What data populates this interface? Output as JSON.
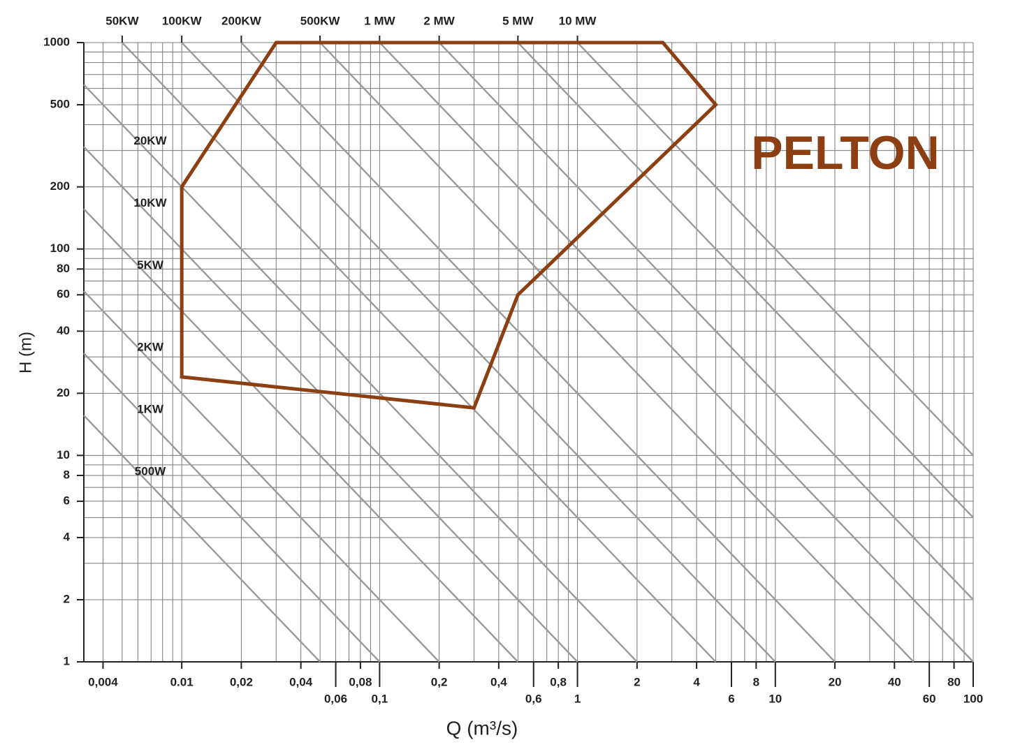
{
  "chart_data": {
    "type": "line",
    "log_x": true,
    "log_y": true,
    "grid": true,
    "xlabel": "Q (m³/s)",
    "ylabel": "H (m)",
    "xlim": [
      0.0032,
      100
    ],
    "ylim": [
      1,
      1000
    ],
    "xticks": [
      {
        "value": 0.004,
        "label": "0,004"
      },
      {
        "value": 0.01,
        "label": "0.01"
      },
      {
        "value": 0.02,
        "label": "0,02"
      },
      {
        "value": 0.04,
        "label": "0,04"
      },
      {
        "value": 0.06,
        "label": "0,06"
      },
      {
        "value": 0.08,
        "label": "0,08"
      },
      {
        "value": 0.1,
        "label": "0,1"
      },
      {
        "value": 0.2,
        "label": "0,2"
      },
      {
        "value": 0.4,
        "label": "0,4"
      },
      {
        "value": 0.6,
        "label": "0,6"
      },
      {
        "value": 0.8,
        "label": "0,8"
      },
      1,
      2,
      4,
      6,
      8,
      10,
      20,
      40,
      60,
      80,
      100
    ],
    "yticks": [
      1,
      2,
      4,
      6,
      8,
      10,
      20,
      40,
      60,
      80,
      100,
      200,
      500,
      1000
    ],
    "xgrid": [
      0.004,
      0.005,
      0.006,
      0.007,
      0.008,
      0.009,
      0.01,
      0.02,
      0.03,
      0.04,
      0.05,
      0.06,
      0.07,
      0.08,
      0.09,
      0.1,
      0.2,
      0.3,
      0.4,
      0.5,
      0.6,
      0.7,
      0.8,
      0.9,
      1,
      2,
      3,
      4,
      5,
      6,
      7,
      8,
      9,
      10,
      20,
      30,
      40,
      50,
      60,
      70,
      80,
      90,
      100
    ],
    "ygrid": [
      1,
      2,
      3,
      4,
      5,
      6,
      7,
      8,
      9,
      10,
      20,
      30,
      40,
      50,
      60,
      70,
      80,
      90,
      100,
      200,
      300,
      400,
      500,
      600,
      700,
      800,
      900,
      1000
    ],
    "power_lines": {
      "color": "#9a9a9a",
      "labels": [
        "500W",
        "1KW",
        "2KW",
        "5KW",
        "10KW",
        "20KW",
        "50KW",
        "100KW",
        "200KW",
        "500KW",
        "1 MW",
        "2 MW",
        "5 MW",
        "10 MW"
      ],
      "values": [
        0.05,
        0.1,
        0.2,
        0.5,
        1,
        2,
        5,
        10,
        20,
        50,
        100,
        200,
        500,
        1000
      ]
    },
    "region": {
      "name": "PELTON",
      "color": "#8b3f12",
      "x": [
        0.01,
        0.03,
        2.7,
        5,
        0.5,
        0.3,
        0.01
      ],
      "y": [
        200,
        1000,
        1000,
        500,
        60,
        17,
        24
      ]
    }
  }
}
